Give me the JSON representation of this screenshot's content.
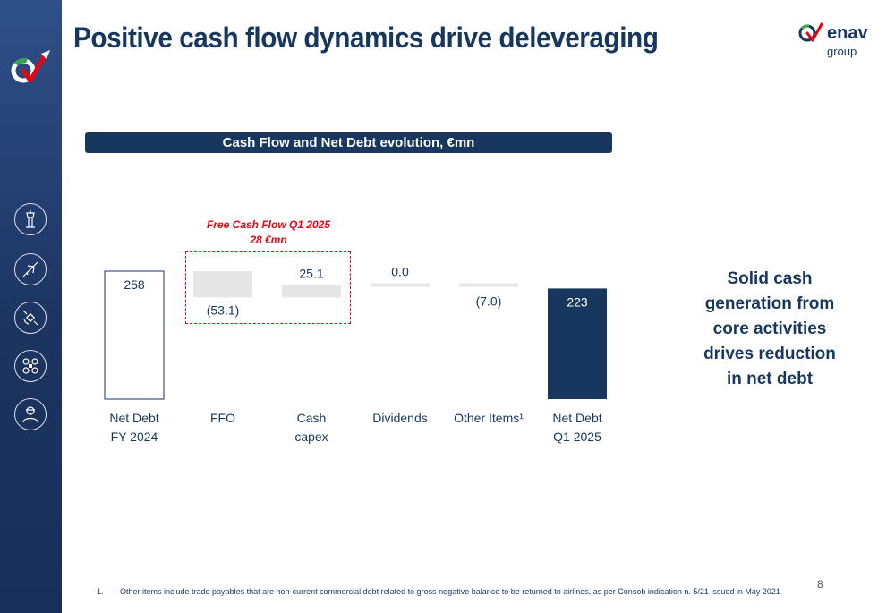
{
  "header": {
    "title": "Positive cash flow dynamics drive deleveraging",
    "brand_name": "enav",
    "brand_sub": "group"
  },
  "colors": {
    "navy": "#17375e",
    "accent_red": "#e30613",
    "bar_grey": "#e6e6e6",
    "bar_dark": "#17375e"
  },
  "sidebar": {
    "icons": [
      "control-tower-icon",
      "airplane-icon",
      "satellite-icon",
      "drone-icon",
      "engineer-icon"
    ]
  },
  "banner": {
    "text": "Cash Flow and Net Debt evolution, €mn"
  },
  "annotation": {
    "line1": "Free Cash Flow Q1 2025",
    "line2": "28 €mn"
  },
  "chart_data": {
    "type": "bar",
    "subtype": "waterfall",
    "title": "Cash Flow and Net Debt evolution, €mn",
    "categories": [
      "Net Debt FY 2024",
      "FFO",
      "Cash capex",
      "Dividends",
      "Other Items¹",
      "Net Debt Q1 2025"
    ],
    "category_lines": [
      [
        "Net Debt",
        "FY 2024"
      ],
      [
        "FFO"
      ],
      [
        "Cash",
        "capex"
      ],
      [
        "Dividends"
      ],
      [
        "Other Items¹"
      ],
      [
        "Net Debt",
        "Q1 2025"
      ]
    ],
    "values": [
      258,
      -53.1,
      25.1,
      0.0,
      -7.0,
      223
    ],
    "labels": [
      "258",
      "(53.1)",
      "25.1",
      "0.0",
      "(7.0)",
      "223"
    ],
    "kinds": [
      "total",
      "delta",
      "delta",
      "delta",
      "delta",
      "total"
    ],
    "bar_styles": [
      "outline",
      "grey",
      "grey",
      "grey",
      "grey",
      "dark"
    ]
  },
  "side_text": [
    "Solid cash",
    "generation from",
    "core activities",
    "drives reduction",
    "in net debt"
  ],
  "footnote": {
    "number": "1.",
    "text": "Other items include trade payables that are non-current commercial debt related to gross negative balance to be returned to airlines, as per Consob indication n. 5/21 issued in May 2021"
  },
  "page_number": "8"
}
